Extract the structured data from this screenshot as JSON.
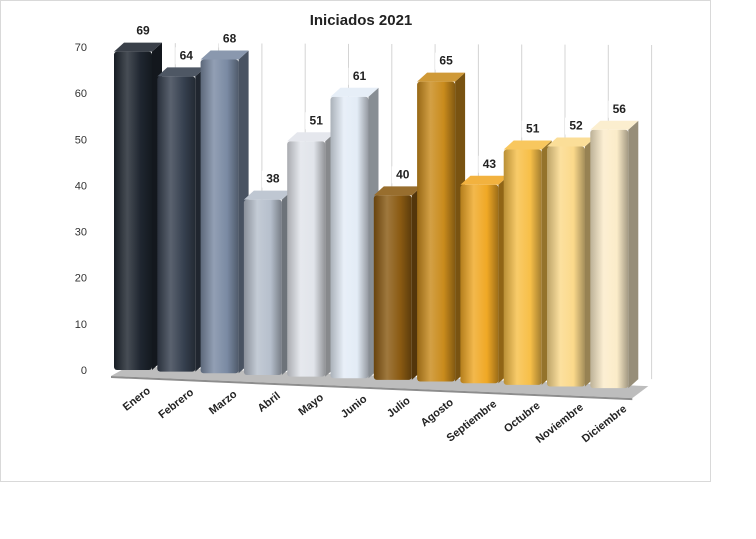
{
  "chart_data": {
    "type": "bar",
    "title": "Iniciados 2021",
    "xlabel": "",
    "ylabel": "",
    "categories": [
      "Enero",
      "Febrero",
      "Marzo",
      "Abril",
      "Mayo",
      "Junio",
      "Julio",
      "Agosto",
      "Septiembre",
      "Octubre",
      "Noviembre",
      "Diciembre"
    ],
    "values": [
      69,
      64,
      68,
      38,
      51,
      61,
      40,
      65,
      43,
      51,
      52,
      56
    ],
    "ylim": [
      0,
      70
    ],
    "yticks": [
      0,
      10,
      20,
      30,
      40,
      50,
      60,
      70
    ],
    "grid": true,
    "legend": "none",
    "style": "3d-column",
    "bar_colors": [
      "#1f2630",
      "#36404f",
      "#7a8aa3",
      "#b6bfcc",
      "#e1e4ea",
      "#e3ecf6",
      "#8a5a12",
      "#c98b1c",
      "#f0a825",
      "#f7bf48",
      "#fbd98a",
      "#fbecc9"
    ]
  }
}
